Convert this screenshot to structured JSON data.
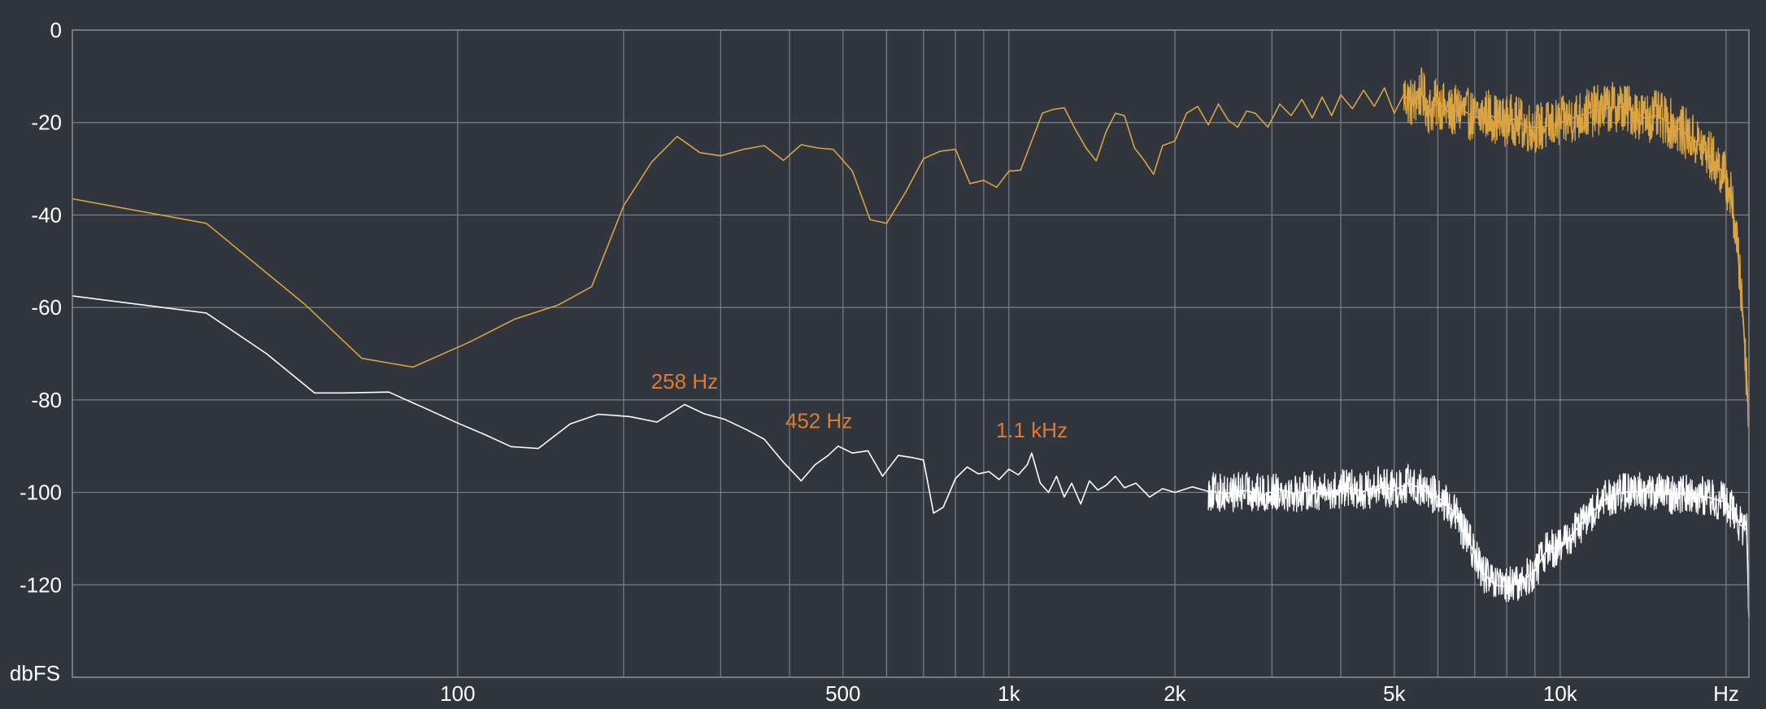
{
  "chart_data": {
    "type": "line",
    "title": "",
    "xscale": "log",
    "xlim": [
      20,
      22000
    ],
    "ylim": [
      -140,
      0
    ],
    "xlabel": "",
    "ylabel": "",
    "y_unit_label": "dbFS",
    "x_unit_label": "Hz",
    "grid": true,
    "x_tick_labels": [
      {
        "value": 100,
        "label": "100"
      },
      {
        "value": 500,
        "label": "500"
      },
      {
        "value": 1000,
        "label": "1k"
      },
      {
        "value": 2000,
        "label": "2k"
      },
      {
        "value": 5000,
        "label": "5k"
      },
      {
        "value": 10000,
        "label": "10k"
      }
    ],
    "x_gridlines": [
      100,
      200,
      300,
      400,
      500,
      600,
      700,
      800,
      900,
      1000,
      2000,
      3000,
      4000,
      5000,
      6000,
      7000,
      8000,
      9000,
      10000,
      20000
    ],
    "y_ticks": [
      0,
      -20,
      -40,
      -60,
      -80,
      -100,
      -120
    ],
    "annotations": [
      {
        "text": "258 Hz",
        "x": 258,
        "y": -79
      },
      {
        "text": "452 Hz",
        "x": 452,
        "y": -87.5
      },
      {
        "text": "1.1  kHz",
        "x": 1100,
        "y": -89.5
      }
    ],
    "series": [
      {
        "color": "#d9a441",
        "points": [
          [
            20,
            -36.5
          ],
          [
            35,
            -41.8
          ],
          [
            53,
            -59.5
          ],
          [
            67,
            -71
          ],
          [
            83,
            -72.9
          ],
          [
            105,
            -67.5
          ],
          [
            127,
            -62.5
          ],
          [
            152,
            -59.5
          ],
          [
            175,
            -55.5
          ],
          [
            200,
            -38
          ],
          [
            225,
            -28.5
          ],
          [
            250,
            -23
          ],
          [
            275,
            -26.5
          ],
          [
            300,
            -27.2
          ],
          [
            330,
            -25.8
          ],
          [
            360,
            -25
          ],
          [
            390,
            -28.2
          ],
          [
            420,
            -24.8
          ],
          [
            450,
            -25.5
          ],
          [
            480,
            -25.8
          ],
          [
            520,
            -30.5
          ],
          [
            560,
            -41
          ],
          [
            600,
            -41.8
          ],
          [
            650,
            -35
          ],
          [
            700,
            -27.8
          ],
          [
            750,
            -26.2
          ],
          [
            800,
            -25.8
          ],
          [
            850,
            -33.2
          ],
          [
            900,
            -32.5
          ],
          [
            950,
            -34
          ],
          [
            1000,
            -30.5
          ],
          [
            1050,
            -30.3
          ],
          [
            1100,
            -24
          ],
          [
            1150,
            -18
          ],
          [
            1200,
            -17.2
          ],
          [
            1260,
            -16.8
          ],
          [
            1320,
            -21.5
          ],
          [
            1380,
            -25.5
          ],
          [
            1440,
            -28.3
          ],
          [
            1500,
            -22
          ],
          [
            1560,
            -18
          ],
          [
            1620,
            -18.5
          ],
          [
            1690,
            -25.5
          ],
          [
            1750,
            -27.8
          ],
          [
            1830,
            -31.2
          ],
          [
            1900,
            -25
          ],
          [
            2000,
            -24
          ],
          [
            2100,
            -18
          ],
          [
            2200,
            -16.5
          ],
          [
            2300,
            -20.5
          ],
          [
            2400,
            -16
          ],
          [
            2500,
            -19.5
          ],
          [
            2600,
            -21
          ],
          [
            2700,
            -17.5
          ],
          [
            2800,
            -18
          ],
          [
            2950,
            -21
          ],
          [
            3100,
            -16
          ],
          [
            3250,
            -18.5
          ],
          [
            3400,
            -15
          ],
          [
            3550,
            -19
          ],
          [
            3700,
            -14.5
          ],
          [
            3850,
            -18.5
          ],
          [
            4000,
            -14
          ],
          [
            4200,
            -17
          ],
          [
            4400,
            -13
          ],
          [
            4600,
            -16.5
          ],
          [
            4800,
            -12.5
          ],
          [
            5000,
            -18
          ],
          [
            5200,
            -14
          ],
          [
            5400,
            -16
          ],
          [
            5600,
            -13.5
          ],
          [
            5800,
            -17.5
          ],
          [
            6000,
            -15.5
          ],
          [
            6300,
            -18
          ],
          [
            6600,
            -17
          ],
          [
            7000,
            -19
          ],
          [
            7400,
            -18
          ],
          [
            7800,
            -20
          ],
          [
            8200,
            -19.2
          ],
          [
            8700,
            -21
          ],
          [
            9200,
            -21
          ],
          [
            9800,
            -20.5
          ],
          [
            10500,
            -19
          ],
          [
            11200,
            -18
          ],
          [
            12000,
            -17
          ],
          [
            12800,
            -16.5
          ],
          [
            13500,
            -17.5
          ],
          [
            14200,
            -19
          ],
          [
            15000,
            -18.5
          ],
          [
            16000,
            -20.5
          ],
          [
            17200,
            -23
          ],
          [
            18500,
            -26.5
          ],
          [
            19800,
            -31
          ],
          [
            20400,
            -36
          ],
          [
            20900,
            -45
          ],
          [
            21500,
            -63
          ],
          [
            22000,
            -84
          ]
        ]
      },
      {
        "color": "#ffffff",
        "points": [
          [
            20,
            -57.5
          ],
          [
            35,
            -61.2
          ],
          [
            45,
            -70
          ],
          [
            55,
            -78.5
          ],
          [
            62,
            -78.5
          ],
          [
            75,
            -78.3
          ],
          [
            88,
            -82
          ],
          [
            100,
            -85
          ],
          [
            112,
            -87.5
          ],
          [
            125,
            -90.1
          ],
          [
            140,
            -90.5
          ],
          [
            160,
            -85.2
          ],
          [
            180,
            -83.1
          ],
          [
            205,
            -83.6
          ],
          [
            230,
            -84.8
          ],
          [
            258,
            -81
          ],
          [
            280,
            -83
          ],
          [
            305,
            -84.2
          ],
          [
            335,
            -86.5
          ],
          [
            360,
            -88.5
          ],
          [
            390,
            -93.5
          ],
          [
            420,
            -97.5
          ],
          [
            445,
            -94
          ],
          [
            470,
            -92
          ],
          [
            490,
            -90
          ],
          [
            520,
            -91.5
          ],
          [
            555,
            -91
          ],
          [
            590,
            -96.5
          ],
          [
            630,
            -92
          ],
          [
            670,
            -92.5
          ],
          [
            700,
            -93
          ],
          [
            730,
            -104.5
          ],
          [
            760,
            -103.2
          ],
          [
            800,
            -97
          ],
          [
            840,
            -94.5
          ],
          [
            880,
            -96
          ],
          [
            920,
            -95.5
          ],
          [
            960,
            -97.2
          ],
          [
            1000,
            -95
          ],
          [
            1040,
            -96.2
          ],
          [
            1080,
            -94
          ],
          [
            1100,
            -91.5
          ],
          [
            1140,
            -98
          ],
          [
            1180,
            -100
          ],
          [
            1220,
            -96.5
          ],
          [
            1260,
            -101
          ],
          [
            1300,
            -98
          ],
          [
            1350,
            -102.5
          ],
          [
            1400,
            -97.5
          ],
          [
            1450,
            -99.5
          ],
          [
            1500,
            -98.5
          ],
          [
            1560,
            -96.5
          ],
          [
            1620,
            -99
          ],
          [
            1700,
            -98
          ],
          [
            1800,
            -101
          ],
          [
            1900,
            -99.2
          ],
          [
            2000,
            -100
          ],
          [
            2150,
            -98.8
          ],
          [
            2300,
            -99.8
          ],
          [
            2500,
            -100.2
          ],
          [
            2700,
            -99.6
          ],
          [
            2900,
            -100.5
          ],
          [
            3100,
            -99.3
          ],
          [
            3300,
            -100.3
          ],
          [
            3500,
            -99.5
          ],
          [
            3800,
            -100
          ],
          [
            4100,
            -99
          ],
          [
            4400,
            -99.8
          ],
          [
            4700,
            -98.5
          ],
          [
            5000,
            -99.5
          ],
          [
            5300,
            -98
          ],
          [
            5600,
            -99.2
          ],
          [
            6000,
            -101
          ],
          [
            6400,
            -104
          ],
          [
            6800,
            -110
          ],
          [
            7200,
            -117
          ],
          [
            7600,
            -120
          ],
          [
            8000,
            -120.5
          ],
          [
            8500,
            -119.5
          ],
          [
            9000,
            -117
          ],
          [
            9500,
            -112
          ],
          [
            10000,
            -112
          ],
          [
            10800,
            -107.5
          ],
          [
            11500,
            -104
          ],
          [
            12200,
            -101
          ],
          [
            13000,
            -100
          ],
          [
            14000,
            -99.8
          ],
          [
            15000,
            -100
          ],
          [
            16000,
            -100.5
          ],
          [
            17200,
            -100
          ],
          [
            18500,
            -101
          ],
          [
            19800,
            -102
          ],
          [
            20600,
            -104
          ],
          [
            21200,
            -107
          ],
          [
            21800,
            -108
          ],
          [
            22000,
            -127
          ]
        ]
      }
    ]
  }
}
